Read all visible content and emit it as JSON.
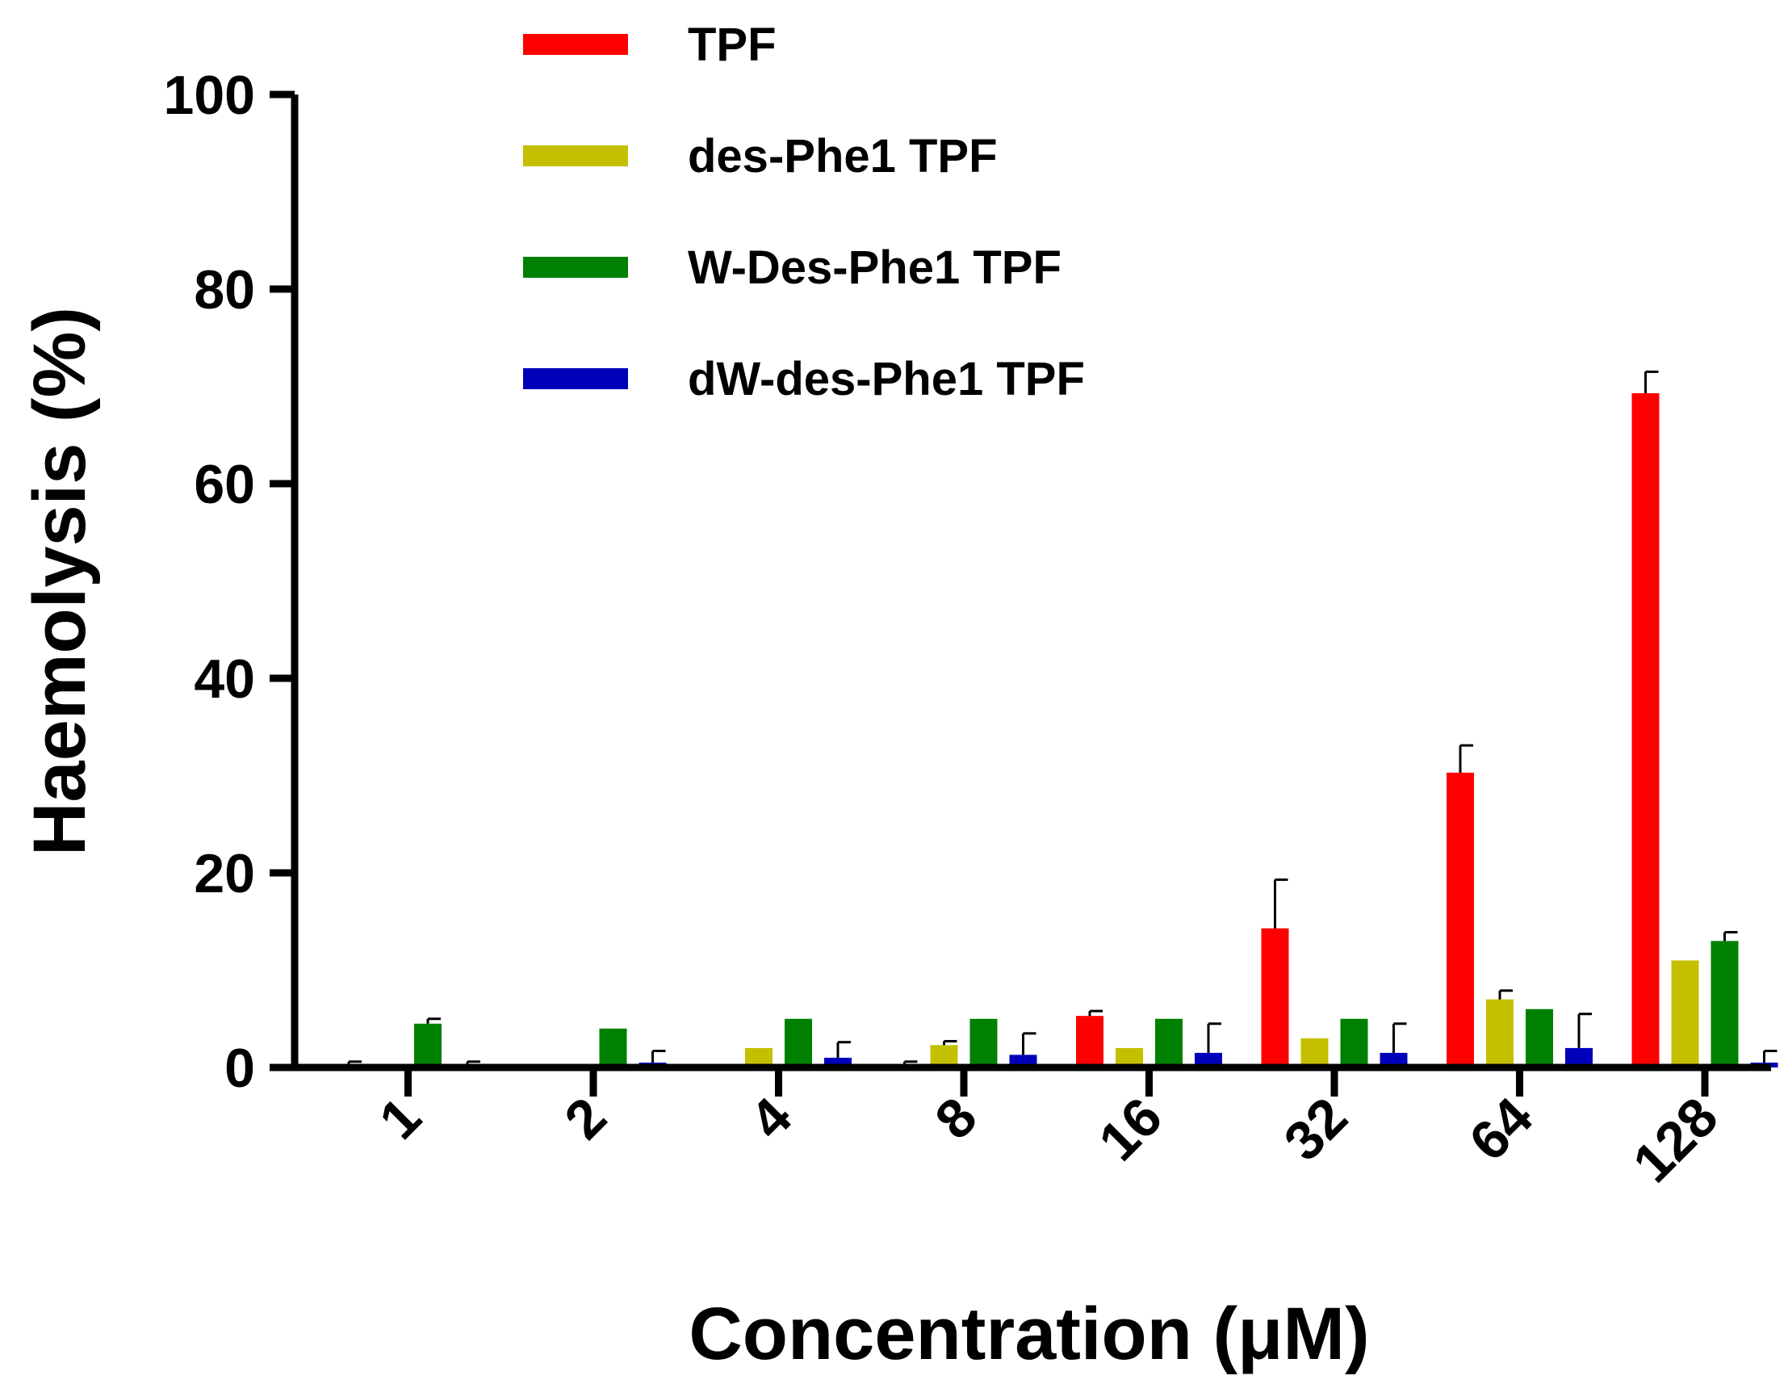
{
  "chart_data": {
    "type": "bar",
    "title": "",
    "xlabel": "Concentration (μM)",
    "ylabel": "Haemolysis (%)",
    "ylim": [
      0,
      100
    ],
    "yticks": [
      "0",
      "20",
      "40",
      "60",
      "80",
      "100"
    ],
    "categories": [
      "1",
      "2",
      "4",
      "8",
      "16",
      "32",
      "64",
      "128"
    ],
    "legend_position": "top-center",
    "series": [
      {
        "name": "TPF",
        "color": "#ff0000",
        "values": [
          0.1,
          0,
          0,
          0.1,
          5.3,
          14.3,
          30.3,
          69.3
        ],
        "errors": [
          0.5,
          0,
          0,
          0.5,
          0.5,
          5.0,
          2.8,
          2.2
        ]
      },
      {
        "name": "des-Phe1 TPF",
        "color": "#c4c000",
        "values": [
          0,
          0,
          2.0,
          2.3,
          2.0,
          3.0,
          7.0,
          11.0
        ],
        "errors": [
          0,
          0,
          0,
          0.4,
          0,
          0,
          0.9,
          0
        ]
      },
      {
        "name": "W-Des-Phe1 TPF",
        "color": "#008000",
        "values": [
          4.5,
          4.0,
          5.0,
          5.0,
          5.0,
          5.0,
          6.0,
          13.0
        ],
        "errors": [
          0.5,
          0,
          0,
          0,
          0,
          0,
          0,
          0.9
        ]
      },
      {
        "name": "dW-des-Phe1 TPF",
        "color": "#0000bb",
        "values": [
          0.1,
          0.5,
          1.0,
          1.3,
          1.5,
          1.5,
          2.0,
          0.5
        ],
        "errors": [
          0.5,
          1.2,
          1.6,
          2.2,
          3.0,
          3.0,
          3.5,
          1.2
        ]
      }
    ]
  }
}
